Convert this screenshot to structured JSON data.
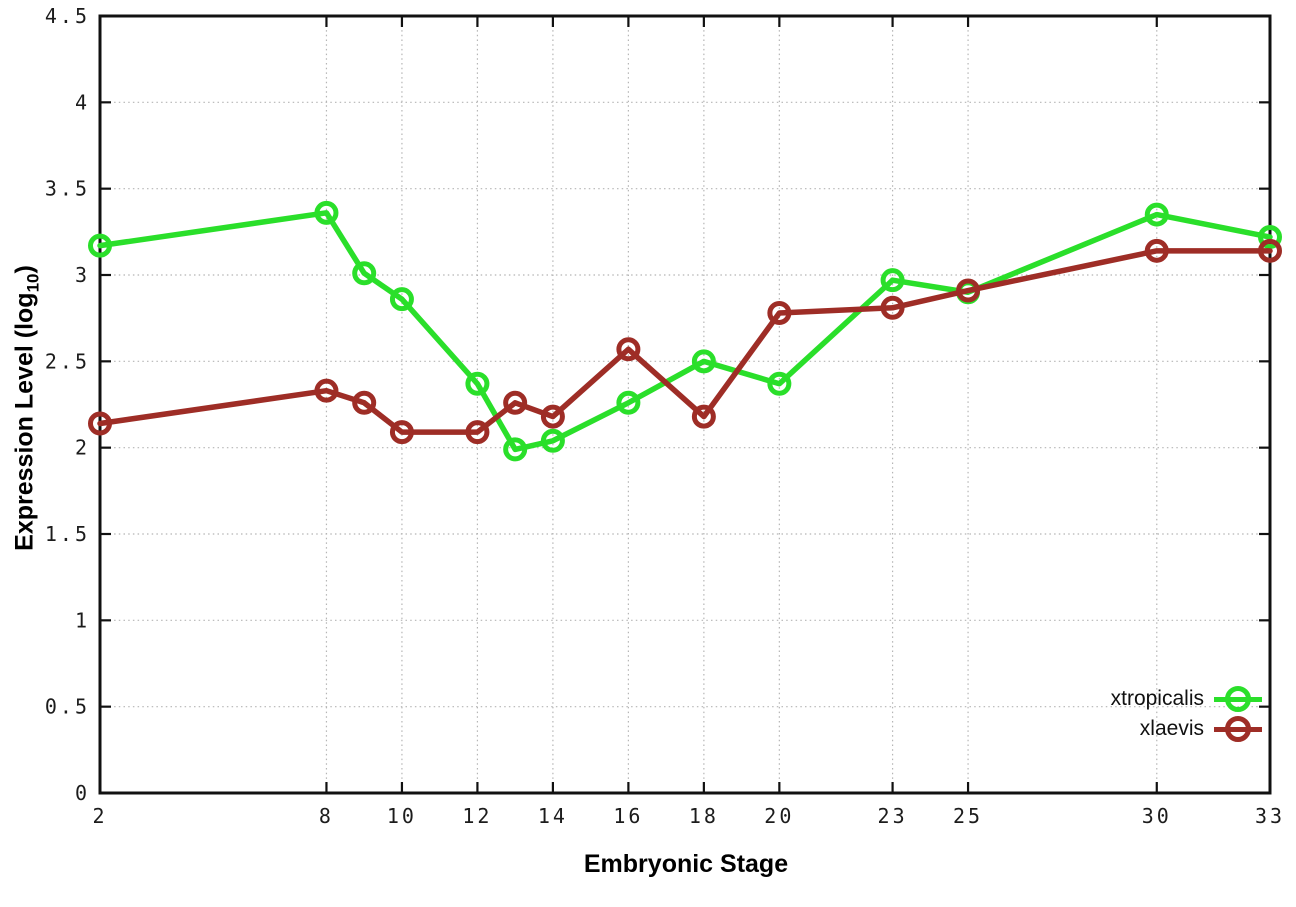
{
  "figure": {
    "background": "#ffffff",
    "border_color": "#111111",
    "grid_color": "#b5b5b5",
    "tick_text_color": "#1c1c1c"
  },
  "chart_data": {
    "type": "line",
    "title": "",
    "xlabel": "Embryonic Stage",
    "ylabel_parts": {
      "text": "Expression Level (log",
      "subscript": "10",
      "close": ")"
    },
    "xlim": [
      2,
      33
    ],
    "ylim": [
      0,
      4.5
    ],
    "grid": true,
    "legend_position": "bottom-right",
    "x": [
      2,
      8,
      9,
      10,
      12,
      13,
      14,
      16,
      18,
      20,
      23,
      25,
      30,
      33
    ],
    "xtick_values": [
      2,
      8,
      10,
      12,
      14,
      16,
      18,
      20,
      23,
      25,
      30,
      33
    ],
    "xtick_labels": [
      "2",
      "8",
      "10",
      "12",
      "14",
      "16",
      "18",
      "20",
      "23",
      "25",
      "30",
      "33"
    ],
    "ytick_values": [
      0,
      0.5,
      1,
      1.5,
      2,
      2.5,
      3,
      3.5,
      4,
      4.5
    ],
    "ytick_labels": [
      "0",
      "0.5",
      "1",
      "1.5",
      "2",
      "2.5",
      "3",
      "3.5",
      "4",
      "4.5"
    ],
    "series": [
      {
        "name": "xtropicalis",
        "color": "#2adf2a",
        "marker": "open-circle",
        "values": [
          3.17,
          3.36,
          3.01,
          2.86,
          2.37,
          1.99,
          2.04,
          2.26,
          2.5,
          2.37,
          2.97,
          2.9,
          3.35,
          3.22
        ]
      },
      {
        "name": "xlaevis",
        "color": "#9e2d26",
        "marker": "open-circle",
        "values": [
          2.14,
          2.33,
          2.26,
          2.09,
          2.09,
          2.26,
          2.18,
          2.57,
          2.18,
          2.78,
          2.81,
          2.91,
          3.14,
          3.14
        ]
      }
    ]
  }
}
